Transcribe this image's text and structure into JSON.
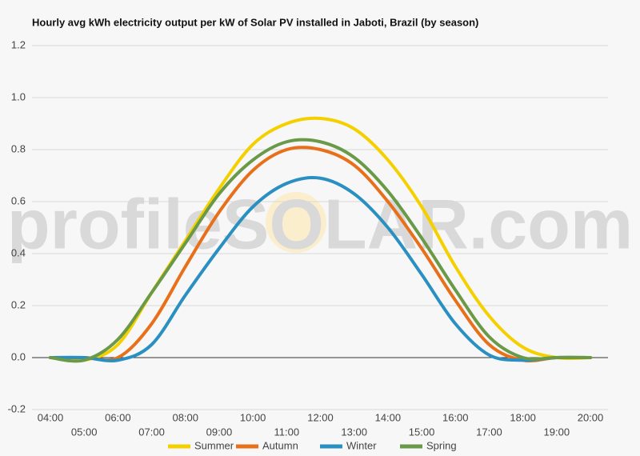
{
  "chart_data": {
    "type": "line",
    "title": "Hourly avg kWh electricity output per kW of Solar PV installed in Jaboti, Brazil (by season)",
    "watermark": "profileSOLAR.com",
    "categories": [
      "04:00",
      "05:00",
      "06:00",
      "07:00",
      "08:00",
      "09:00",
      "10:00",
      "11:00",
      "12:00",
      "13:00",
      "14:00",
      "15:00",
      "16:00",
      "17:00",
      "18:00",
      "19:00",
      "20:00"
    ],
    "series": [
      {
        "name": "Summer",
        "color": "#f5d000",
        "values": [
          0,
          -0.01,
          0.05,
          0.25,
          0.45,
          0.65,
          0.82,
          0.9,
          0.92,
          0.88,
          0.76,
          0.58,
          0.35,
          0.16,
          0.04,
          0.0,
          0.0
        ]
      },
      {
        "name": "Autumn",
        "color": "#e8701a",
        "values": [
          0,
          0,
          0.0,
          0.13,
          0.35,
          0.56,
          0.72,
          0.8,
          0.8,
          0.74,
          0.6,
          0.42,
          0.22,
          0.05,
          -0.01,
          0,
          0
        ]
      },
      {
        "name": "Winter",
        "color": "#2a8fc1",
        "values": [
          0,
          0,
          -0.01,
          0.05,
          0.24,
          0.42,
          0.58,
          0.67,
          0.69,
          0.63,
          0.5,
          0.32,
          0.13,
          0.01,
          -0.01,
          0,
          0
        ]
      },
      {
        "name": "Spring",
        "color": "#6a9a48",
        "values": [
          0,
          -0.01,
          0.07,
          0.25,
          0.44,
          0.63,
          0.76,
          0.83,
          0.83,
          0.77,
          0.64,
          0.46,
          0.26,
          0.08,
          0,
          0,
          0
        ]
      }
    ],
    "ylim": [
      -0.2,
      1.2
    ],
    "yticks": [
      -0.2,
      {
        "value": 0,
        "label": "0.0"
      },
      0.2,
      0.4,
      0.6,
      0.8,
      {
        "value": 1,
        "label": "1.0"
      },
      1.2
    ],
    "grid": true,
    "legend": "bottom"
  }
}
